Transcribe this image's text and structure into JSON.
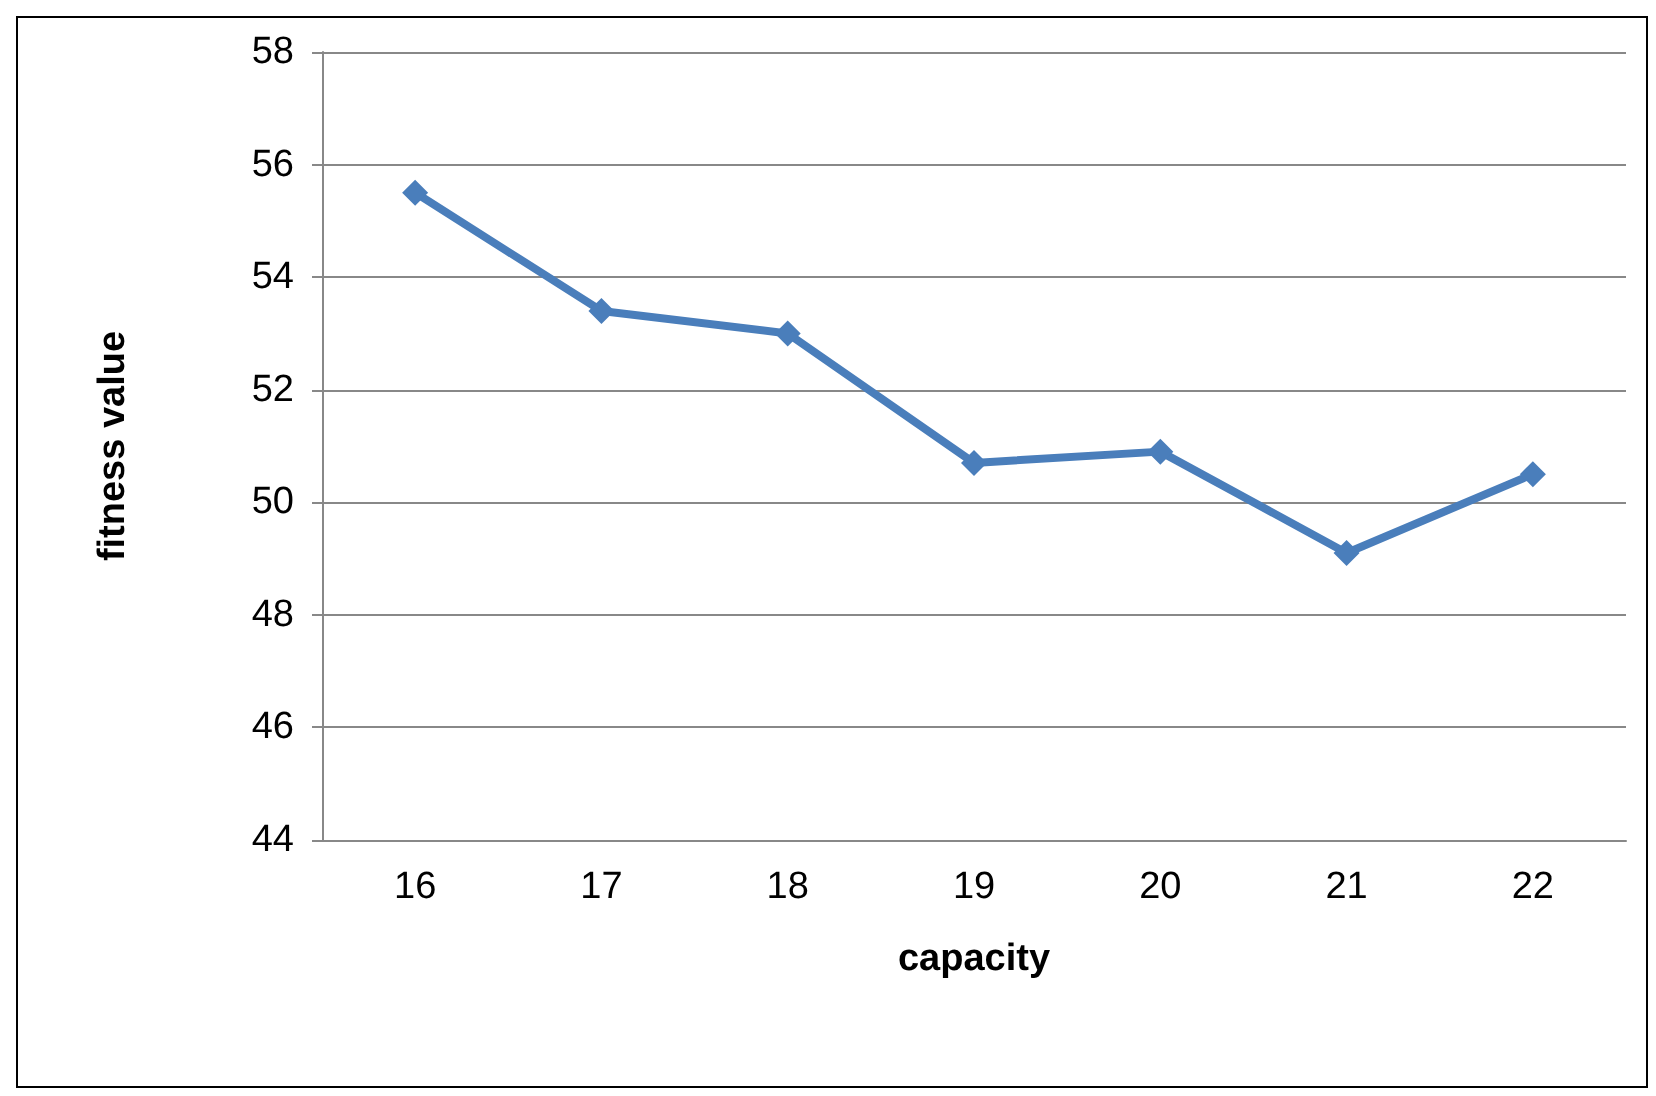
{
  "chart_data": {
    "type": "line",
    "xlabel": "capacity",
    "ylabel": "fitness value",
    "categories": [
      "16",
      "17",
      "18",
      "19",
      "20",
      "21",
      "22"
    ],
    "series": [
      {
        "color": "#4a7ebb",
        "values": [
          55.5,
          53.4,
          53.0,
          50.7,
          50.9,
          49.1,
          50.5
        ]
      }
    ],
    "ylim": [
      44,
      58
    ],
    "yticks": [
      44,
      46,
      48,
      50,
      52,
      54,
      56,
      58
    ],
    "grid": "y",
    "marker": "diamond",
    "line_style": "solid"
  }
}
